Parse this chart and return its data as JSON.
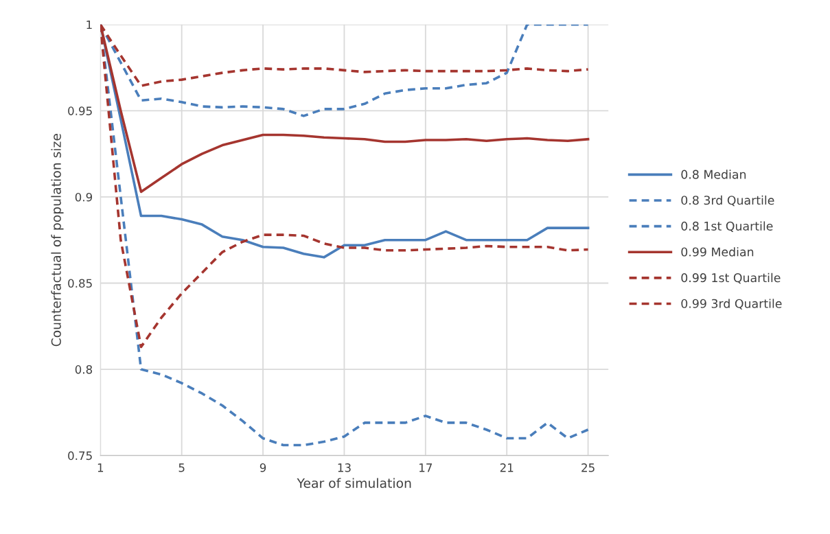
{
  "chart_data": {
    "type": "line",
    "xlabel": "Year of simulation",
    "ylabel": "Counterfactual of population size",
    "x": [
      1,
      2,
      3,
      4,
      5,
      6,
      7,
      8,
      9,
      10,
      11,
      12,
      13,
      14,
      15,
      16,
      17,
      18,
      19,
      20,
      21,
      22,
      23,
      24,
      25
    ],
    "xlim": [
      1,
      26
    ],
    "xticks": [
      1,
      5,
      9,
      13,
      17,
      21,
      25
    ],
    "ylim": [
      0.75,
      1
    ],
    "yticks": [
      0.75,
      0.8,
      0.85,
      0.9,
      0.95,
      1
    ],
    "grid": true,
    "legend": "right",
    "marker": "none",
    "series": [
      {
        "name": "0.8 Median",
        "color": "#4a7ebb",
        "line_style": "solid",
        "values": [
          1.0,
          0.945,
          0.889,
          0.889,
          0.887,
          0.884,
          0.877,
          0.875,
          0.871,
          0.8705,
          0.867,
          0.865,
          0.872,
          0.872,
          0.875,
          0.875,
          0.875,
          0.88,
          0.875,
          0.875,
          0.875,
          0.875,
          0.882,
          0.882,
          0.882
        ]
      },
      {
        "name": "0.8 3rd Quartile",
        "color": "#4a7ebb",
        "line_style": "dashed",
        "values": [
          1.0,
          0.978,
          0.956,
          0.957,
          0.955,
          0.9525,
          0.952,
          0.9525,
          0.952,
          0.951,
          0.947,
          0.951,
          0.951,
          0.954,
          0.96,
          0.962,
          0.963,
          0.963,
          0.965,
          0.966,
          0.972,
          1.0,
          1.0,
          1.0,
          1.0
        ]
      },
      {
        "name": "0.8 1st Quartile",
        "color": "#4a7ebb",
        "line_style": "dashed",
        "values": [
          1.0,
          0.9,
          0.8,
          0.797,
          0.792,
          0.786,
          0.779,
          0.77,
          0.76,
          0.756,
          0.756,
          0.758,
          0.761,
          0.769,
          0.769,
          0.769,
          0.773,
          0.769,
          0.769,
          0.765,
          0.76,
          0.76,
          0.769,
          0.76,
          0.765
        ]
      },
      {
        "name": "0.99 Median",
        "color": "#a5352f",
        "line_style": "solid",
        "values": [
          1.0,
          0.95,
          0.903,
          0.911,
          0.919,
          0.925,
          0.93,
          0.933,
          0.936,
          0.936,
          0.9355,
          0.9345,
          0.934,
          0.9335,
          0.932,
          0.932,
          0.933,
          0.933,
          0.9335,
          0.9325,
          0.9335,
          0.934,
          0.933,
          0.9325,
          0.9335
        ]
      },
      {
        "name": "0.99 1st Quartile",
        "color": "#a5352f",
        "line_style": "dashed",
        "values": [
          1.0,
          0.982,
          0.9645,
          0.967,
          0.968,
          0.97,
          0.972,
          0.9735,
          0.9745,
          0.974,
          0.9745,
          0.9745,
          0.9735,
          0.9725,
          0.973,
          0.9735,
          0.973,
          0.973,
          0.973,
          0.973,
          0.9735,
          0.9745,
          0.9735,
          0.973,
          0.974
        ]
      },
      {
        "name": "0.99 3rd Quartile",
        "color": "#a5352f",
        "line_style": "dashed",
        "values": [
          1.0,
          0.875,
          0.813,
          0.83,
          0.844,
          0.856,
          0.868,
          0.874,
          0.878,
          0.878,
          0.8775,
          0.873,
          0.8705,
          0.8705,
          0.869,
          0.869,
          0.8695,
          0.87,
          0.8705,
          0.8715,
          0.871,
          0.871,
          0.871,
          0.869,
          0.8695
        ]
      }
    ]
  }
}
